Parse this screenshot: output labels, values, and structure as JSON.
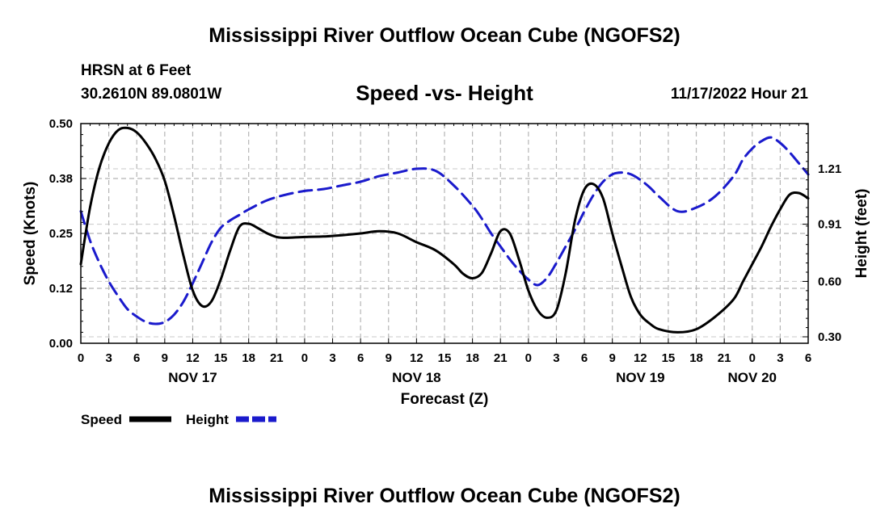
{
  "page": {
    "title": "Mississippi River Outflow Ocean Cube (NGOFS2)",
    "station": "HRSN at 6 Feet",
    "coords": "30.2610N  89.0801W",
    "subtitle": "Speed -vs- Height",
    "datetime": "11/17/2022 Hour 21",
    "bottom_title": "Mississippi River Outflow Ocean Cube (NGOFS2)"
  },
  "chart_data": {
    "type": "line",
    "title": "Speed -vs- Height",
    "xlabel": "Forecast (Z)",
    "ylabel": "Speed (Knots)",
    "y2label": "Height (feet)",
    "xlim": [
      0,
      78
    ],
    "ylim": [
      0,
      0.5
    ],
    "y2lim": [
      0.265,
      1.455
    ],
    "x_ticks": [
      0,
      3,
      6,
      9,
      12,
      15,
      18,
      21,
      24,
      27,
      30,
      33,
      36,
      39,
      42,
      45,
      48,
      51,
      54,
      57,
      60,
      63,
      66,
      69,
      72,
      75,
      78
    ],
    "x_tick_labels": [
      "0",
      "3",
      "6",
      "9",
      "12",
      "15",
      "18",
      "21",
      "0",
      "3",
      "6",
      "9",
      "12",
      "15",
      "18",
      "21",
      "0",
      "3",
      "6",
      "9",
      "12",
      "15",
      "18",
      "21",
      "0",
      "3",
      "6"
    ],
    "date_labels": [
      {
        "x": 12,
        "label": "NOV 17"
      },
      {
        "x": 36,
        "label": "NOV 18"
      },
      {
        "x": 60,
        "label": "NOV 19"
      },
      {
        "x": 72,
        "label": "NOV 20"
      }
    ],
    "y_ticks": [
      0.0,
      0.125,
      0.25,
      0.375,
      0.5
    ],
    "y_tick_labels": [
      "0.00",
      "0.12",
      "0.25",
      "0.38",
      "0.50"
    ],
    "y2_ticks": [
      0.3,
      0.6,
      0.91,
      1.21
    ],
    "y2_tick_labels": [
      "0.30",
      "0.60",
      "0.91",
      "1.21"
    ],
    "grid": true,
    "series": [
      {
        "name": "Speed",
        "axis": "left",
        "color": "#000000",
        "style": "solid",
        "x": [
          0,
          1,
          2,
          3,
          4,
          5,
          6,
          7,
          8,
          9,
          10,
          11,
          12,
          13,
          14,
          15,
          16,
          17,
          18,
          19,
          20,
          21,
          22,
          24,
          26,
          28,
          30,
          32,
          34,
          36,
          38,
          40,
          41,
          42,
          43,
          44,
          45,
          46,
          47,
          48,
          49,
          50,
          51,
          52,
          53,
          54,
          55,
          56,
          57,
          58,
          59,
          60,
          61,
          62,
          64,
          66,
          68,
          70,
          71,
          72,
          73,
          74,
          75,
          76,
          77,
          78
        ],
        "values": [
          0.18,
          0.31,
          0.4,
          0.455,
          0.485,
          0.49,
          0.48,
          0.455,
          0.42,
          0.37,
          0.29,
          0.2,
          0.12,
          0.085,
          0.095,
          0.145,
          0.21,
          0.265,
          0.272,
          0.262,
          0.25,
          0.242,
          0.24,
          0.242,
          0.243,
          0.246,
          0.25,
          0.255,
          0.25,
          0.23,
          0.212,
          0.18,
          0.158,
          0.148,
          0.16,
          0.205,
          0.255,
          0.25,
          0.19,
          0.12,
          0.075,
          0.058,
          0.075,
          0.16,
          0.28,
          0.35,
          0.362,
          0.33,
          0.25,
          0.175,
          0.105,
          0.065,
          0.045,
          0.032,
          0.025,
          0.032,
          0.06,
          0.1,
          0.14,
          0.18,
          0.22,
          0.265,
          0.305,
          0.338,
          0.342,
          0.33
        ],
        "segments": "x continues as forecast hours; values read from left axis"
      },
      {
        "name": "Height",
        "axis": "right",
        "color": "#1a1acc",
        "style": "dashed",
        "x": [
          0,
          1,
          2,
          3,
          4,
          5,
          6,
          7,
          8,
          9,
          10,
          11,
          12,
          13,
          14,
          15,
          16,
          17,
          18,
          20,
          22,
          24,
          26,
          28,
          30,
          32,
          34,
          36,
          38,
          40,
          42,
          43,
          44,
          45,
          46,
          47,
          48,
          49,
          50,
          51,
          52,
          53,
          54,
          55,
          56,
          57,
          58,
          59,
          60,
          61,
          62,
          64,
          66,
          68,
          70,
          71,
          72,
          73,
          74,
          75,
          76,
          77,
          78
        ],
        "values": [
          0.98,
          0.82,
          0.7,
          0.6,
          0.52,
          0.45,
          0.41,
          0.38,
          0.37,
          0.38,
          0.42,
          0.49,
          0.59,
          0.7,
          0.81,
          0.89,
          0.93,
          0.96,
          0.99,
          1.04,
          1.07,
          1.09,
          1.1,
          1.12,
          1.14,
          1.17,
          1.19,
          1.21,
          1.2,
          1.12,
          1.01,
          0.94,
          0.86,
          0.79,
          0.72,
          0.66,
          0.61,
          0.58,
          0.62,
          0.7,
          0.79,
          0.88,
          0.98,
          1.07,
          1.14,
          1.18,
          1.19,
          1.18,
          1.15,
          1.11,
          1.06,
          0.98,
          1.0,
          1.06,
          1.17,
          1.26,
          1.32,
          1.36,
          1.38,
          1.35,
          1.3,
          1.24,
          1.18
        ]
      }
    ],
    "legend": {
      "position": "bottom-left",
      "entries": [
        {
          "label": "Speed",
          "color": "#000000",
          "style": "solid"
        },
        {
          "label": "Height",
          "color": "#1a1acc",
          "style": "dashed"
        }
      ]
    }
  }
}
